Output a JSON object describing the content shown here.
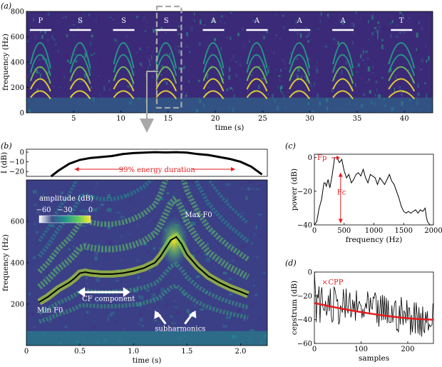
{
  "colors": {
    "viridis_dark": "#440154",
    "viridis_blue": "#31688e",
    "viridis_teal": "#21918c",
    "viridis_green": "#5ec962",
    "viridis_yellow": "#fde725",
    "annotation_red": "#e41a1c",
    "arrow_grey": "#a8a8a8"
  },
  "panels": {
    "a": "(a)",
    "b": "(b)",
    "c": "(c)",
    "d": "(d)"
  },
  "chart_data": [
    {
      "panel": "a",
      "type": "heatmap",
      "title": "",
      "xlabel": "time (s)",
      "ylabel": "frequency (Hz)",
      "xlim": [
        0,
        43
      ],
      "ylim": [
        0,
        800
      ],
      "xticks": [
        "5",
        "10",
        "15",
        "20",
        "25",
        "30",
        "35",
        "40"
      ],
      "yticks": [
        "0",
        "200",
        "400",
        "600",
        "800"
      ],
      "segment_labels": [
        {
          "label": "P",
          "x": 1.5
        },
        {
          "label": "S",
          "x": 5.7
        },
        {
          "label": "S",
          "x": 10.3
        },
        {
          "label": "S",
          "x": 14.8
        },
        {
          "label": "A",
          "x": 19.8
        },
        {
          "label": "A",
          "x": 24.4
        },
        {
          "label": "A",
          "x": 28.9
        },
        {
          "label": "A",
          "x": 33.5
        },
        {
          "label": "T",
          "x": 39.7
        }
      ],
      "highlight_window_s": [
        13.8,
        16.4
      ]
    },
    {
      "panel": "b",
      "type": "heatmap",
      "xlabel": "time (s)",
      "ylabel": "frequency (Hz)",
      "xlim": [
        0,
        2.25
      ],
      "ylim": [
        0,
        800
      ],
      "xticks": [
        "0",
        "0.5",
        "1.0",
        "1.5",
        "2.0"
      ],
      "yticks": [
        "200",
        "400",
        "600"
      ],
      "colorbar": {
        "label": "amplitude (dB)",
        "ticks": [
          "−60",
          "−30",
          "0"
        ],
        "range": [
          -60,
          0
        ]
      },
      "f0_contour": {
        "t": [
          0.12,
          0.2,
          0.3,
          0.4,
          0.45,
          0.5,
          0.55,
          0.6,
          0.7,
          0.8,
          0.9,
          1.0,
          1.1,
          1.2,
          1.25,
          1.3,
          1.35,
          1.4,
          1.45,
          1.5,
          1.6,
          1.7,
          1.8,
          1.9,
          2.0,
          2.07
        ],
        "f": [
          210,
          235,
          275,
          305,
          325,
          350,
          355,
          350,
          345,
          345,
          350,
          360,
          375,
          400,
          430,
          470,
          510,
          525,
          490,
          440,
          380,
          335,
          305,
          280,
          260,
          245
        ]
      },
      "annotations": {
        "max_f0": "Max F0",
        "min_f0": "Min F0",
        "cf": "CF component",
        "sub": "subharmonics"
      }
    },
    {
      "panel": "b-top",
      "type": "line",
      "ylabel": "I (dB)",
      "ylim": [
        -25,
        3
      ],
      "yticks": [
        "0",
        "−10",
        "−20"
      ],
      "duration_label": "99% energy duration",
      "x": [
        0.23,
        0.3,
        0.4,
        0.5,
        0.6,
        0.7,
        0.8,
        0.9,
        1.0,
        1.1,
        1.2,
        1.3,
        1.4,
        1.5,
        1.6,
        1.7,
        1.8,
        1.9,
        2.0,
        2.1,
        2.2
      ],
      "y": [
        -25,
        -19,
        -12,
        -8,
        -6,
        -5,
        -4,
        -2,
        -1,
        -0.5,
        0,
        -0.3,
        0,
        -0.5,
        -2,
        -3,
        -5,
        -7,
        -10,
        -15,
        -23
      ]
    },
    {
      "panel": "c",
      "type": "line",
      "xlabel": "frequency (Hz)",
      "ylabel": "power (dB)",
      "xlim": [
        0,
        2000
      ],
      "ylim": [
        -40,
        2
      ],
      "xticks": [
        "0",
        "500",
        "1000",
        "1500",
        "2000"
      ],
      "yticks": [
        "0",
        "−20",
        "−40"
      ],
      "labels": {
        "fp": "Fp",
        "fc": "Fc"
      },
      "x": [
        0,
        40,
        80,
        120,
        160,
        180,
        200,
        230,
        260,
        300,
        340,
        380,
        420,
        460,
        500,
        540,
        580,
        620,
        660,
        700,
        740,
        780,
        820,
        860,
        900,
        940,
        980,
        1020,
        1060,
        1100,
        1140,
        1180,
        1220,
        1260,
        1300,
        1340,
        1380,
        1420,
        1460,
        1500,
        1540,
        1580,
        1620,
        1660,
        1700,
        1740,
        1780,
        1820,
        1860,
        1880,
        1900,
        1940,
        1980
      ],
      "y": [
        -40,
        -38,
        -30,
        -25,
        -15,
        -15,
        -17,
        -13,
        -18,
        -10,
        0,
        0,
        -3,
        -1,
        -8,
        -12,
        -10,
        -15,
        -13,
        -10,
        -9,
        -11,
        -7,
        -12,
        -15,
        -10,
        -11,
        -12,
        -16,
        -12,
        -14,
        -16,
        -13,
        -10,
        -14,
        -16,
        -20,
        -24,
        -29,
        -32,
        -33,
        -32,
        -33,
        -32,
        -31,
        -33,
        -31,
        -32,
        -30,
        -35,
        -38,
        -40,
        -42
      ]
    },
    {
      "panel": "d",
      "type": "line",
      "xlabel": "samples",
      "ylabel": "cepstrum (dB)",
      "xlim": [
        0,
        255
      ],
      "ylim": [
        -60,
        0
      ],
      "xticks": [
        "0",
        "100",
        "200"
      ],
      "yticks": [
        "0",
        "−20",
        "−40",
        "−60"
      ],
      "cpp_label": "CPP",
      "cpp_point": {
        "x": 22,
        "y": -8
      },
      "regression": {
        "start": [
          0,
          -26
        ],
        "end": [
          255,
          -40
        ]
      }
    }
  ]
}
